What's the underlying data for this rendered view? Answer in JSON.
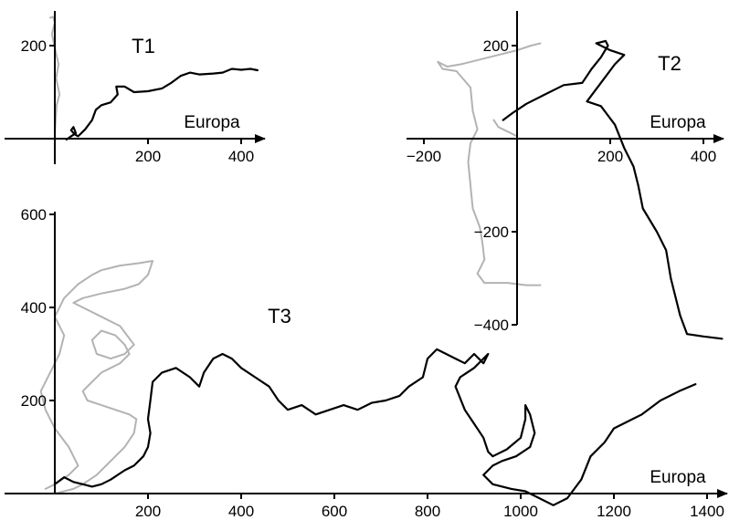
{
  "chart_data": [
    {
      "type": "line",
      "title": "T1",
      "xlabel": "Europa",
      "x_ticks": [
        "200",
        "400"
      ],
      "x_tick_values": [
        200,
        400
      ],
      "y_ticks": [
        "200"
      ],
      "y_tick_values": [
        200
      ],
      "colors": {
        "black": "#000000",
        "gray": "#b3b3b3"
      },
      "series": [
        {
          "color": "gray",
          "points": [
            [
              -10,
              260
            ],
            [
              -4,
              262
            ],
            [
              0,
              250
            ],
            [
              -6,
              225
            ],
            [
              0,
              195
            ],
            [
              8,
              160
            ],
            [
              3,
              130
            ],
            [
              10,
              95
            ],
            [
              4,
              72
            ],
            [
              2,
              42
            ],
            [
              0,
              10
            ]
          ]
        },
        {
          "color": "black",
          "points": [
            [
              25,
              -2
            ],
            [
              35,
              5
            ],
            [
              45,
              12
            ],
            [
              40,
              25
            ],
            [
              35,
              18
            ],
            [
              42,
              10
            ],
            [
              50,
              5
            ],
            [
              65,
              20
            ],
            [
              80,
              40
            ],
            [
              88,
              62
            ],
            [
              100,
              72
            ],
            [
              120,
              78
            ],
            [
              135,
              95
            ],
            [
              132,
              112
            ],
            [
              150,
              112
            ],
            [
              170,
              100
            ],
            [
              200,
              102
            ],
            [
              230,
              108
            ],
            [
              250,
              120
            ],
            [
              270,
              135
            ],
            [
              290,
              142
            ],
            [
              310,
              138
            ],
            [
              340,
              140
            ],
            [
              360,
              142
            ],
            [
              380,
              150
            ],
            [
              400,
              148
            ],
            [
              420,
              150
            ],
            [
              435,
              147
            ]
          ]
        }
      ]
    },
    {
      "type": "line",
      "title": "T2",
      "xlabel": "Europa",
      "x_ticks": [
        "−200",
        "200",
        "400"
      ],
      "x_tick_values": [
        -200,
        200,
        400
      ],
      "y_ticks": [
        "200",
        "−200",
        "−400"
      ],
      "y_tick_values": [
        200,
        -200,
        -400
      ],
      "colors": {
        "black": "#000000",
        "gray": "#b3b3b3"
      },
      "series": [
        {
          "color": "gray",
          "points": [
            [
              50,
              205
            ],
            [
              30,
              200
            ],
            [
              0,
              190
            ],
            [
              -40,
              180
            ],
            [
              -80,
              170
            ],
            [
              -120,
              160
            ],
            [
              -150,
              155
            ],
            [
              -170,
              165
            ],
            [
              -160,
              150
            ],
            [
              -130,
              145
            ],
            [
              -100,
              110
            ],
            [
              -95,
              60
            ],
            [
              -85,
              20
            ],
            [
              -100,
              -10
            ],
            [
              -105,
              -50
            ],
            [
              -100,
              -100
            ],
            [
              -95,
              -150
            ],
            [
              -80,
              -190
            ],
            [
              -75,
              -220
            ],
            [
              -70,
              -260
            ],
            [
              -85,
              -290
            ],
            [
              -70,
              -310
            ],
            [
              -20,
              -310
            ],
            [
              20,
              -315
            ],
            [
              50,
              -315
            ]
          ]
        },
        {
          "color": "gray",
          "points": [
            [
              -50,
              40
            ],
            [
              -40,
              25
            ],
            [
              -20,
              15
            ],
            [
              0,
              5
            ]
          ]
        },
        {
          "color": "black",
          "points": [
            [
              -30,
              40
            ],
            [
              -10,
              55
            ],
            [
              20,
              75
            ],
            [
              60,
              95
            ],
            [
              100,
              115
            ],
            [
              140,
              120
            ],
            [
              160,
              150
            ],
            [
              180,
              175
            ],
            [
              195,
              200
            ],
            [
              190,
              210
            ],
            [
              170,
              205
            ],
            [
              200,
              190
            ],
            [
              230,
              180
            ],
            [
              210,
              160
            ],
            [
              180,
              120
            ],
            [
              150,
              80
            ],
            [
              180,
              70
            ],
            [
              210,
              30
            ],
            [
              230,
              -20
            ],
            [
              250,
              -60
            ],
            [
              260,
              -100
            ],
            [
              270,
              -150
            ],
            [
              300,
              -200
            ],
            [
              320,
              -240
            ],
            [
              330,
              -300
            ],
            [
              340,
              -340
            ],
            [
              350,
              -380
            ],
            [
              365,
              -420
            ],
            [
              400,
              -425
            ],
            [
              440,
              -430
            ]
          ]
        }
      ]
    },
    {
      "type": "line",
      "title": "T3",
      "xlabel": "Europa",
      "x_ticks": [
        "200",
        "400",
        "600",
        "800",
        "1000",
        "1200",
        "1400"
      ],
      "x_tick_values": [
        200,
        400,
        600,
        800,
        1000,
        1200,
        1400
      ],
      "y_ticks": [
        "600",
        "400",
        "200"
      ],
      "y_tick_values": [
        600,
        400,
        200
      ],
      "colors": {
        "black": "#000000",
        "gray": "#b3b3b3"
      },
      "series": [
        {
          "color": "gray",
          "points": [
            [
              -20,
              10
            ],
            [
              0,
              20
            ],
            [
              30,
              40
            ],
            [
              50,
              60
            ],
            [
              30,
              100
            ],
            [
              0,
              140
            ],
            [
              -20,
              180
            ],
            [
              -30,
              220
            ],
            [
              -10,
              260
            ],
            [
              10,
              300
            ],
            [
              20,
              340
            ],
            [
              0,
              380
            ],
            [
              20,
              420
            ],
            [
              50,
              450
            ],
            [
              80,
              470
            ],
            [
              100,
              480
            ],
            [
              140,
              490
            ],
            [
              180,
              495
            ],
            [
              210,
              500
            ],
            [
              200,
              470
            ],
            [
              180,
              450
            ],
            [
              150,
              440
            ],
            [
              100,
              430
            ],
            [
              60,
              420
            ],
            [
              40,
              410
            ],
            [
              60,
              400
            ],
            [
              100,
              380
            ],
            [
              140,
              360
            ],
            [
              170,
              320
            ],
            [
              150,
              300
            ],
            [
              120,
              290
            ],
            [
              90,
              300
            ],
            [
              80,
              330
            ],
            [
              100,
              350
            ],
            [
              130,
              340
            ],
            [
              150,
              320
            ],
            [
              160,
              300
            ],
            [
              140,
              280
            ],
            [
              120,
              270
            ],
            [
              100,
              260
            ],
            [
              80,
              240
            ],
            [
              60,
              220
            ],
            [
              70,
              200
            ],
            [
              100,
              190
            ],
            [
              130,
              180
            ],
            [
              160,
              170
            ],
            [
              175,
              160
            ],
            [
              170,
              130
            ],
            [
              150,
              100
            ],
            [
              120,
              70
            ],
            [
              90,
              40
            ],
            [
              60,
              20
            ],
            [
              40,
              10
            ],
            [
              20,
              5
            ],
            [
              0,
              0
            ]
          ]
        },
        {
          "color": "black",
          "points": [
            [
              0,
              20
            ],
            [
              20,
              35
            ],
            [
              40,
              25
            ],
            [
              60,
              20
            ],
            [
              80,
              15
            ],
            [
              100,
              20
            ],
            [
              120,
              30
            ],
            [
              150,
              50
            ],
            [
              170,
              60
            ],
            [
              190,
              80
            ],
            [
              200,
              100
            ],
            [
              205,
              130
            ],
            [
              200,
              160
            ],
            [
              205,
              200
            ],
            [
              210,
              240
            ],
            [
              230,
              260
            ],
            [
              260,
              270
            ],
            [
              290,
              250
            ],
            [
              310,
              230
            ],
            [
              320,
              260
            ],
            [
              340,
              290
            ],
            [
              360,
              300
            ],
            [
              380,
              290
            ],
            [
              400,
              270
            ],
            [
              430,
              250
            ],
            [
              460,
              230
            ],
            [
              480,
              200
            ],
            [
              500,
              180
            ],
            [
              530,
              190
            ],
            [
              560,
              170
            ],
            [
              590,
              180
            ],
            [
              620,
              190
            ],
            [
              650,
              180
            ],
            [
              680,
              195
            ],
            [
              710,
              200
            ],
            [
              740,
              210
            ],
            [
              760,
              230
            ],
            [
              790,
              250
            ],
            [
              800,
              290
            ],
            [
              820,
              310
            ],
            [
              840,
              300
            ],
            [
              860,
              290
            ],
            [
              880,
              280
            ],
            [
              900,
              300
            ],
            [
              920,
              280
            ],
            [
              930,
              300
            ],
            [
              900,
              270
            ],
            [
              870,
              250
            ],
            [
              860,
              230
            ],
            [
              880,
              180
            ],
            [
              900,
              150
            ],
            [
              920,
              120
            ],
            [
              930,
              90
            ],
            [
              940,
              80
            ],
            [
              970,
              95
            ],
            [
              1000,
              120
            ],
            [
              1010,
              160
            ],
            [
              1010,
              190
            ],
            [
              1020,
              170
            ],
            [
              1030,
              130
            ],
            [
              1020,
              100
            ],
            [
              990,
              80
            ],
            [
              960,
              70
            ],
            [
              940,
              60
            ],
            [
              920,
              40
            ],
            [
              940,
              20
            ],
            [
              980,
              10
            ],
            [
              1010,
              5
            ],
            [
              1040,
              -10
            ],
            [
              1070,
              -25
            ],
            [
              1100,
              -10
            ],
            [
              1130,
              30
            ],
            [
              1150,
              80
            ],
            [
              1180,
              110
            ],
            [
              1200,
              140
            ],
            [
              1220,
              150
            ],
            [
              1240,
              160
            ],
            [
              1260,
              170
            ],
            [
              1300,
              200
            ],
            [
              1340,
              220
            ],
            [
              1375,
              235
            ]
          ]
        }
      ]
    }
  ]
}
